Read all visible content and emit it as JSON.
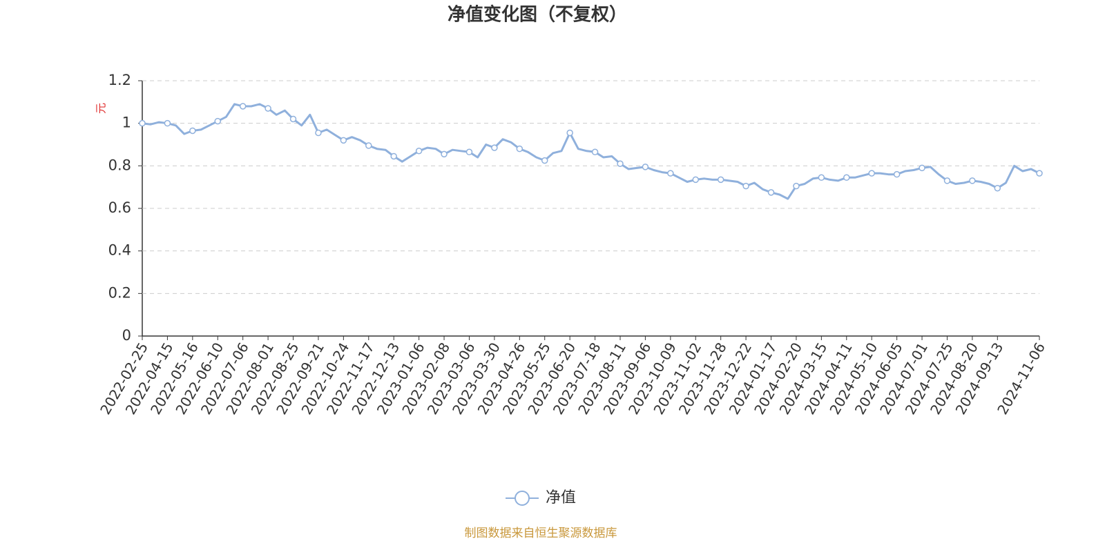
{
  "chart_data": {
    "type": "line",
    "title": "净值变化图（不复权）",
    "y_axis_label": "元",
    "source": "制图数据来自恒生聚源数据库",
    "legend": "bottom",
    "grid": true,
    "ylim": [
      0,
      1.2
    ],
    "yticks": [
      0,
      0.2,
      0.4,
      0.6,
      0.8,
      1,
      1.2
    ],
    "categories": [
      "2022-02-25",
      null,
      null,
      "2022-04-15",
      null,
      null,
      "2022-05-16",
      null,
      null,
      "2022-06-10",
      null,
      null,
      "2022-07-06",
      null,
      null,
      "2022-08-01",
      null,
      null,
      "2022-08-25",
      null,
      null,
      "2022-09-21",
      null,
      null,
      "2022-10-24",
      null,
      null,
      "2022-11-17",
      null,
      null,
      "2022-12-13",
      null,
      null,
      "2023-01-06",
      null,
      null,
      "2023-02-08",
      null,
      null,
      "2023-03-06",
      null,
      null,
      "2023-03-30",
      null,
      null,
      "2023-04-26",
      null,
      null,
      "2023-05-25",
      null,
      null,
      "2023-06-20",
      null,
      null,
      "2023-07-18",
      null,
      null,
      "2023-08-11",
      null,
      null,
      "2023-09-06",
      null,
      null,
      "2023-10-09",
      null,
      null,
      "2023-11-02",
      null,
      null,
      "2023-11-28",
      null,
      null,
      "2023-12-22",
      null,
      null,
      "2024-01-17",
      null,
      null,
      "2024-02-20",
      null,
      null,
      "2024-03-15",
      null,
      null,
      "2024-04-11",
      null,
      null,
      "2024-05-10",
      null,
      null,
      "2024-06-05",
      null,
      null,
      "2024-07-01",
      null,
      null,
      "2024-07-25",
      null,
      null,
      "2024-08-20",
      null,
      null,
      "2024-09-13",
      null,
      null,
      null,
      null,
      "2024-11-06"
    ],
    "series": [
      {
        "name": "净值",
        "color": "#8fb0dc",
        "values": [
          1.0,
          0.995,
          1.005,
          1.0,
          0.99,
          0.95,
          0.965,
          0.97,
          0.99,
          1.01,
          1.03,
          1.09,
          1.08,
          1.08,
          1.09,
          1.07,
          1.04,
          1.06,
          1.02,
          0.99,
          1.04,
          0.955,
          0.97,
          0.945,
          0.92,
          0.935,
          0.92,
          0.895,
          0.88,
          0.875,
          0.845,
          0.82,
          0.845,
          0.87,
          0.885,
          0.88,
          0.855,
          0.875,
          0.87,
          0.865,
          0.84,
          0.9,
          0.885,
          0.925,
          0.91,
          0.88,
          0.865,
          0.84,
          0.825,
          0.86,
          0.87,
          0.955,
          0.88,
          0.87,
          0.865,
          0.84,
          0.845,
          0.81,
          0.785,
          0.79,
          0.795,
          0.78,
          0.77,
          0.765,
          0.745,
          0.725,
          0.735,
          0.74,
          0.735,
          0.735,
          0.73,
          0.725,
          0.705,
          0.72,
          0.69,
          0.675,
          0.665,
          0.645,
          0.705,
          0.715,
          0.74,
          0.745,
          0.735,
          0.73,
          0.745,
          0.745,
          0.755,
          0.765,
          0.765,
          0.76,
          0.76,
          0.775,
          0.78,
          0.79,
          0.795,
          0.76,
          0.73,
          0.715,
          0.72,
          0.73,
          0.725,
          0.715,
          0.695,
          0.72,
          0.8,
          0.775,
          0.785,
          0.765
        ]
      }
    ]
  }
}
